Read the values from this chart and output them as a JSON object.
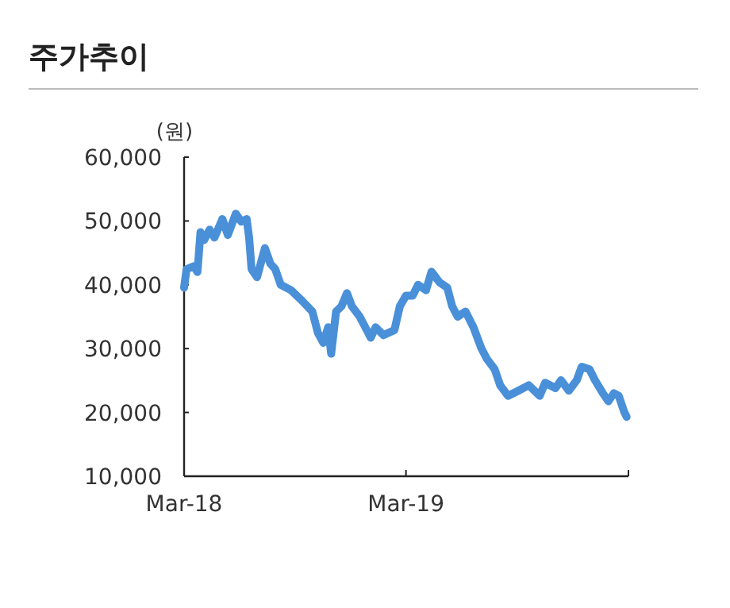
{
  "chart_data": {
    "type": "line",
    "title": "주가추이",
    "ylabel": "(원)",
    "grid": false,
    "marker": "none",
    "line_style": "solid",
    "xlim": [
      "2018-03-01",
      "2020-03-01"
    ],
    "xticks": [
      {
        "value": "2018-03-01",
        "label": "Mar-18"
      },
      {
        "value": "2019-03-01",
        "label": "Mar-19"
      },
      {
        "value": "2020-03-01",
        "label": null
      }
    ],
    "ylim": [
      10000,
      60000
    ],
    "yticks": [
      {
        "value": 10000,
        "label": "10,000"
      },
      {
        "value": 20000,
        "label": "20,000"
      },
      {
        "value": 30000,
        "label": "30,000"
      },
      {
        "value": 40000,
        "label": "40,000"
      },
      {
        "value": 50000,
        "label": "50,000"
      },
      {
        "value": 60000,
        "label": "60,000"
      }
    ],
    "x": [
      "2018-03-01",
      "2018-03-05",
      "2018-03-17",
      "2018-03-23",
      "2018-03-28",
      "2018-04-03",
      "2018-04-12",
      "2018-04-20",
      "2018-05-03",
      "2018-05-12",
      "2018-05-25",
      "2018-06-03",
      "2018-06-12",
      "2018-06-16",
      "2018-06-20",
      "2018-06-29",
      "2018-07-12",
      "2018-07-21",
      "2018-07-29",
      "2018-08-07",
      "2018-08-24",
      "2018-09-11",
      "2018-09-28",
      "2018-10-07",
      "2018-10-16",
      "2018-10-24",
      "2018-10-29",
      "2018-11-06",
      "2018-11-15",
      "2018-11-24",
      "2018-12-02",
      "2018-12-15",
      "2018-12-24",
      "2019-01-02",
      "2019-01-10",
      "2019-01-23",
      "2019-02-10",
      "2019-02-19",
      "2019-03-01",
      "2019-03-12",
      "2019-03-21",
      "2019-04-03",
      "2019-04-12",
      "2019-04-25",
      "2019-05-08",
      "2019-05-16",
      "2019-05-25",
      "2019-06-07",
      "2019-06-20",
      "2019-07-03",
      "2019-07-12",
      "2019-07-25",
      "2019-08-03",
      "2019-08-16",
      "2019-09-02",
      "2019-09-19",
      "2019-10-07",
      "2019-10-16",
      "2019-11-02",
      "2019-11-11",
      "2019-11-24",
      "2019-12-07",
      "2019-12-15",
      "2019-12-28",
      "2020-01-06",
      "2020-01-19",
      "2020-01-28",
      "2020-02-06",
      "2020-02-14",
      "2020-02-23",
      "2020-02-27"
    ],
    "series": [
      {
        "color": "#4a90d9",
        "values": [
          39550,
          42450,
          42900,
          42000,
          48250,
          47000,
          48650,
          47400,
          50300,
          47800,
          51150,
          49900,
          50300,
          47400,
          42450,
          41200,
          45750,
          43300,
          42450,
          40000,
          39150,
          37500,
          35800,
          32500,
          30900,
          33350,
          29200,
          35800,
          36650,
          38700,
          36650,
          35000,
          33350,
          31700,
          33350,
          32100,
          32900,
          36650,
          38300,
          38300,
          40000,
          39150,
          42050,
          40400,
          39550,
          36650,
          35000,
          35800,
          33350,
          30050,
          28400,
          26750,
          24250,
          22600,
          23400,
          24250,
          22600,
          24650,
          23800,
          25050,
          23400,
          25050,
          27150,
          26750,
          25050,
          23000,
          21750,
          23000,
          22600,
          20100,
          19300
        ]
      }
    ]
  }
}
